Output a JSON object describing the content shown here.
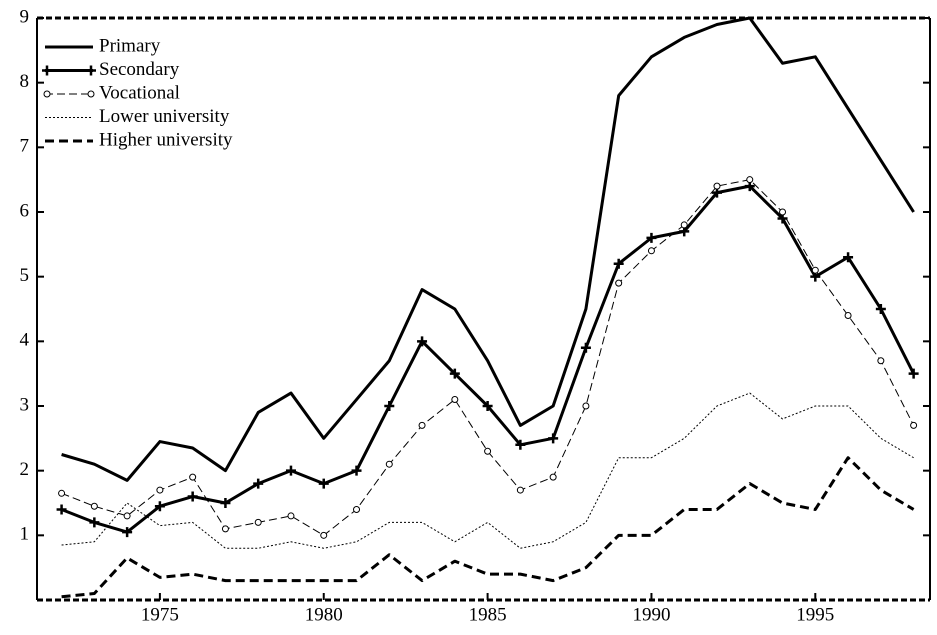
{
  "chart_data": {
    "type": "line",
    "x": [
      1972,
      1973,
      1974,
      1975,
      1976,
      1977,
      1978,
      1979,
      1980,
      1981,
      1982,
      1983,
      1984,
      1985,
      1986,
      1987,
      1988,
      1989,
      1990,
      1991,
      1992,
      1993,
      1994,
      1995,
      1996,
      1997,
      1998
    ],
    "series": [
      {
        "name": "Primary",
        "color": "#000000",
        "width": 3,
        "dash": "none",
        "marker": "none",
        "values": [
          2.25,
          2.1,
          1.85,
          2.45,
          2.35,
          2.0,
          2.9,
          3.2,
          2.5,
          3.1,
          3.7,
          4.8,
          4.5,
          3.7,
          2.7,
          3.0,
          4.5,
          7.8,
          8.4,
          8.7,
          8.9,
          9.0,
          8.3,
          8.4,
          7.6,
          6.8,
          6.0
        ]
      },
      {
        "name": "Secondary",
        "color": "#000000",
        "width": 3,
        "dash": "none",
        "marker": "plus",
        "values": [
          1.4,
          1.2,
          1.05,
          1.45,
          1.6,
          1.5,
          1.8,
          2.0,
          1.8,
          2.0,
          3.0,
          4.0,
          3.5,
          3.0,
          2.4,
          2.5,
          3.9,
          5.2,
          5.6,
          5.7,
          6.3,
          6.4,
          5.9,
          5.0,
          5.3,
          4.5,
          3.5
        ]
      },
      {
        "name": "Vocational",
        "color": "#000000",
        "width": 1,
        "dash": "8 4",
        "marker": "circle",
        "values": [
          1.65,
          1.45,
          1.3,
          1.7,
          1.9,
          1.1,
          1.2,
          1.3,
          1.0,
          1.4,
          2.1,
          2.7,
          3.1,
          2.3,
          1.7,
          1.9,
          3.0,
          4.9,
          5.4,
          5.8,
          6.4,
          6.5,
          6.0,
          5.1,
          4.4,
          3.7,
          2.7
        ]
      },
      {
        "name": "Lower university",
        "color": "#000000",
        "width": 1,
        "dash": "2 2",
        "marker": "none",
        "values": [
          0.85,
          0.9,
          1.5,
          1.15,
          1.2,
          0.8,
          0.8,
          0.9,
          0.8,
          0.9,
          1.2,
          1.2,
          0.9,
          1.2,
          0.8,
          0.9,
          1.2,
          2.2,
          2.2,
          2.5,
          3.0,
          3.2,
          2.8,
          3.0,
          3.0,
          2.5,
          2.2
        ]
      },
      {
        "name": "Higher university",
        "color": "#000000",
        "width": 3,
        "dash": "9 5",
        "marker": "none",
        "values": [
          0.05,
          0.1,
          0.65,
          0.35,
          0.4,
          0.3,
          0.3,
          0.3,
          0.3,
          0.3,
          0.7,
          0.3,
          0.6,
          0.4,
          0.4,
          0.3,
          0.5,
          1.0,
          1.0,
          1.4,
          1.4,
          1.8,
          1.5,
          1.4,
          2.2,
          1.7,
          1.4
        ]
      }
    ],
    "xlim": [
      1971.25,
      1998.5
    ],
    "xticks": [
      1975,
      1980,
      1985,
      1990,
      1995
    ],
    "ylim": [
      0,
      9
    ],
    "yticks": [
      1,
      2,
      3,
      4,
      5,
      6,
      7,
      8,
      9
    ]
  }
}
